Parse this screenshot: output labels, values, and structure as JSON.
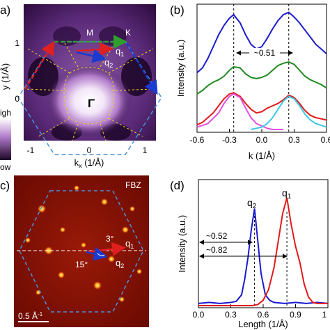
{
  "panels": {
    "a": {
      "label": "a)",
      "xlabel": "kx (1/Å)",
      "xlabel_main": "k",
      "xlabel_sub": "x",
      "xlabel_unit": " (1/Å)",
      "ylabel_fragment": "y (1/Å)",
      "xticks": [
        "-1",
        "0",
        "1"
      ],
      "yticks": [
        "1",
        "0"
      ],
      "colorbar": {
        "high": "igh",
        "low": "ow"
      },
      "points": {
        "M": "M",
        "K": "K",
        "Gamma": "Γ"
      },
      "vectors": {
        "q1": "q",
        "q1_sub": "1",
        "q2": "q",
        "q2_sub": "2"
      },
      "colors": {
        "background": "#2a0a3a",
        "hexagon": "#4a90d9",
        "green_arrow": "#2ea02e",
        "red_arrow": "#e02020",
        "blue_arrow": "#1a3ad0",
        "dashed_lines": "#f0d020"
      }
    },
    "b": {
      "label": "(b)",
      "annotation": "~0.51"
    },
    "c": {
      "label": "c)",
      "fbz": "FBZ",
      "angle_small": "3°",
      "angle_large": "15°",
      "q1": "q",
      "q1_sub": "1",
      "q2": "q",
      "q2_sub": "2",
      "scalebar": "0.5 Å-1",
      "scalebar_main": "0.5 Å",
      "scalebar_sup": "-1"
    },
    "d": {
      "label": "(d)",
      "q1": "q",
      "q1_sub": "1",
      "q2": "q",
      "q2_sub": "2",
      "ann1": "~0.52",
      "ann2": "~0.82"
    }
  },
  "chart_data": [
    {
      "type": "line",
      "panel": "b",
      "xlabel": "k (1/Å)",
      "ylabel": "Intensity (a.u.)",
      "xlim": [
        -0.6,
        0.6
      ],
      "xticks": [
        "-0.6",
        "-0.3",
        "0.0",
        "0.3",
        "0.6"
      ],
      "vlines": [
        -0.26,
        0.25
      ],
      "series": [
        {
          "color": "#1a1ad0",
          "x": [
            -0.6,
            -0.55,
            -0.5,
            -0.45,
            -0.4,
            -0.35,
            -0.3,
            -0.26,
            -0.2,
            -0.15,
            -0.1,
            -0.05,
            0.0,
            0.05,
            0.1,
            0.15,
            0.2,
            0.25,
            0.3,
            0.35,
            0.4,
            0.45,
            0.5,
            0.55,
            0.6
          ],
          "y": [
            0.48,
            0.52,
            0.6,
            0.7,
            0.8,
            0.88,
            0.94,
            0.97,
            0.9,
            0.8,
            0.72,
            0.68,
            0.7,
            0.77,
            0.85,
            0.92,
            0.97,
            0.99,
            0.95,
            0.9,
            0.84,
            0.78,
            0.72,
            0.68,
            0.64
          ]
        },
        {
          "color": "#208a20",
          "x": [
            -0.6,
            -0.55,
            -0.5,
            -0.45,
            -0.4,
            -0.35,
            -0.3,
            -0.26,
            -0.2,
            -0.15,
            -0.1,
            -0.05,
            0.0,
            0.05,
            0.1,
            0.15,
            0.2,
            0.25,
            0.3,
            0.35,
            0.4,
            0.45,
            0.5,
            0.55,
            0.6
          ],
          "y": [
            0.3,
            0.33,
            0.37,
            0.4,
            0.42,
            0.45,
            0.5,
            0.53,
            0.52,
            0.47,
            0.44,
            0.43,
            0.44,
            0.46,
            0.5,
            0.54,
            0.56,
            0.57,
            0.55,
            0.5,
            0.45,
            0.42,
            0.4,
            0.38,
            0.35
          ]
        },
        {
          "color": "#e01a1a",
          "x": [
            -0.6,
            -0.55,
            -0.5,
            -0.45,
            -0.4,
            -0.35,
            -0.3,
            -0.26,
            -0.2,
            -0.15,
            -0.1,
            -0.05,
            0.0,
            0.05,
            0.1,
            0.15,
            0.2,
            0.25,
            0.3,
            0.35,
            0.4,
            0.45,
            0.5,
            0.55,
            0.6
          ],
          "y": [
            0.04,
            0.06,
            0.1,
            0.14,
            0.2,
            0.26,
            0.3,
            0.31,
            0.28,
            0.22,
            0.17,
            0.14,
            0.15,
            0.18,
            0.2,
            0.22,
            0.25,
            0.29,
            0.27,
            0.22,
            0.16,
            0.12,
            0.1,
            0.09,
            0.08
          ]
        },
        {
          "color": "#e050e0",
          "x": [
            -0.6,
            -0.5,
            -0.4,
            -0.35,
            -0.3,
            -0.26,
            -0.2,
            -0.15,
            -0.1,
            -0.05,
            0.0,
            0.05,
            0.1,
            0.2
          ],
          "y": [
            0.02,
            0.05,
            0.14,
            0.22,
            0.28,
            0.3,
            0.27,
            0.18,
            0.1,
            0.05,
            0.03,
            0.01,
            0.0,
            0.0
          ]
        },
        {
          "color": "#3ac8e8",
          "x": [
            -0.1,
            0.0,
            0.05,
            0.1,
            0.15,
            0.2,
            0.25,
            0.3,
            0.35,
            0.4,
            0.45,
            0.5,
            0.6
          ],
          "y": [
            0.0,
            0.02,
            0.05,
            0.1,
            0.17,
            0.24,
            0.28,
            0.26,
            0.2,
            0.13,
            0.08,
            0.05,
            0.02
          ]
        }
      ]
    },
    {
      "type": "line",
      "panel": "d",
      "xlabel": "Length (1/Å)",
      "ylabel": "Intensity (a.u.)",
      "xlim": [
        0.0,
        1.2
      ],
      "xticks": [
        "0.0",
        "0.3",
        "0.6",
        "0.9",
        "1"
      ],
      "vlines": [
        0.52,
        0.82
      ],
      "series": [
        {
          "color": "#1a1ad0",
          "x": [
            0.0,
            0.1,
            0.2,
            0.3,
            0.35,
            0.4,
            0.43,
            0.46,
            0.49,
            0.52,
            0.55,
            0.58,
            0.62,
            0.66,
            0.7,
            0.8,
            0.9,
            1.0,
            1.1,
            1.2
          ],
          "y": [
            0.02,
            0.03,
            0.02,
            0.03,
            0.04,
            0.1,
            0.25,
            0.45,
            0.7,
            0.9,
            0.6,
            0.3,
            0.1,
            0.05,
            0.03,
            0.02,
            0.03,
            0.02,
            0.03,
            0.02
          ]
        },
        {
          "color": "#e01a1a",
          "x": [
            0.0,
            0.3,
            0.5,
            0.55,
            0.6,
            0.65,
            0.7,
            0.74,
            0.78,
            0.82,
            0.86,
            0.9,
            0.94,
            0.98,
            1.02,
            1.06,
            1.1,
            1.2
          ],
          "y": [
            0.0,
            0.0,
            0.0,
            0.01,
            0.05,
            0.15,
            0.35,
            0.6,
            0.85,
            1.0,
            0.75,
            0.55,
            0.4,
            0.2,
            0.08,
            0.03,
            0.02,
            0.02
          ]
        }
      ]
    }
  ]
}
